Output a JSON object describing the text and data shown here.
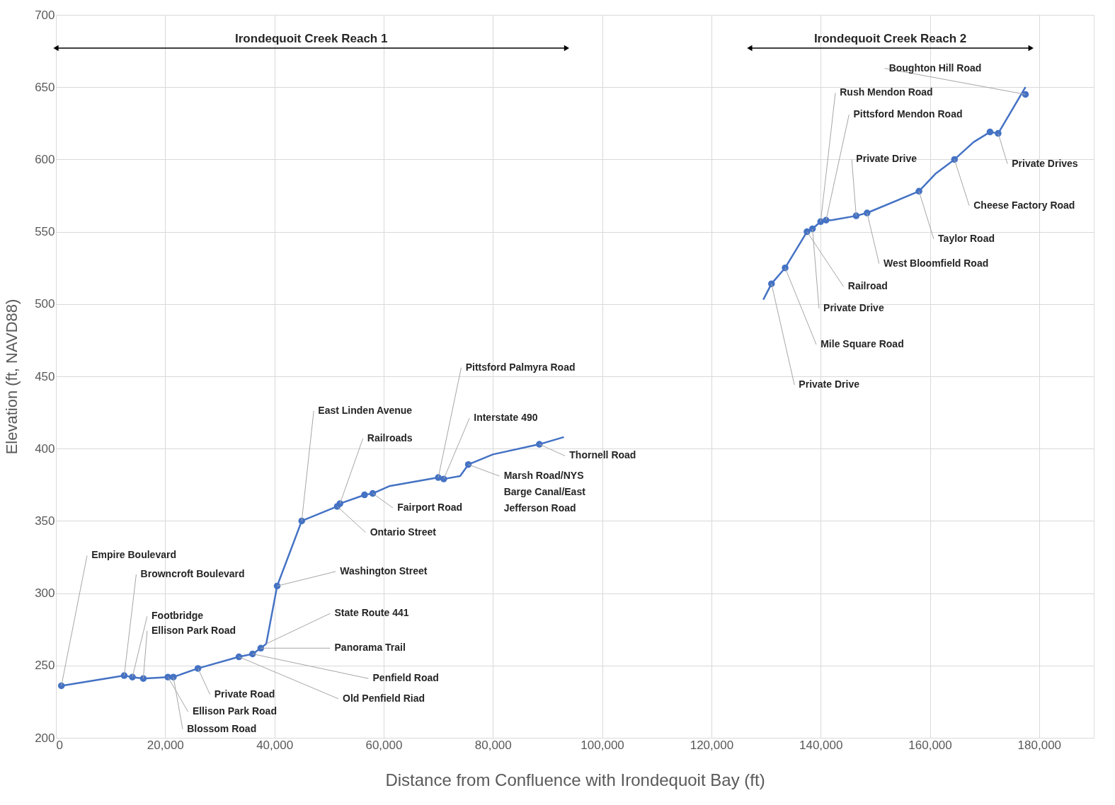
{
  "chart_data": {
    "type": "line",
    "xlabel": "Distance from Confluence with Irondequoit Bay (ft)",
    "ylabel": "Elevation (ft, NAVD88)",
    "xlim": [
      0,
      190000
    ],
    "ylim": [
      200,
      700
    ],
    "xticks": [
      0,
      {
        "value": 20000,
        "label": "20,000"
      },
      {
        "value": 40000,
        "label": "40,000"
      },
      {
        "value": 60000,
        "label": "60,000"
      },
      {
        "value": 80000,
        "label": "80,000"
      },
      {
        "value": 100000,
        "label": "100,000"
      },
      {
        "value": 120000,
        "label": "120,000"
      },
      {
        "value": 140000,
        "label": "140,000"
      },
      {
        "value": 160000,
        "label": "160,000"
      },
      {
        "value": 180000,
        "label": "180,000"
      }
    ],
    "yticks": [
      200,
      250,
      300,
      350,
      400,
      450,
      500,
      550,
      600,
      650,
      700
    ],
    "grid": true,
    "line_style": "solid",
    "series": [
      {
        "type": "line",
        "color": "#4472c4",
        "marker": "none",
        "x": [
          1000,
          12500,
          14000,
          16000,
          20500,
          21500,
          26000,
          33500,
          36000,
          37500,
          38500,
          40500,
          45000,
          51500,
          52000,
          56500,
          58000,
          61000,
          70000,
          71000,
          74000,
          75500,
          80000,
          88500,
          93000
        ],
        "values": [
          236,
          243,
          242,
          241,
          242,
          242,
          248,
          256,
          258,
          262,
          265,
          305,
          350,
          360,
          362,
          368,
          369,
          374,
          380,
          379,
          381,
          389,
          396,
          403,
          408
        ]
      },
      {
        "type": "line",
        "color": "#4472c4",
        "marker": "none",
        "x": [
          129500,
          131000,
          133500,
          137500,
          138500,
          140000,
          141000,
          142000,
          146500,
          148500,
          158000,
          161000,
          164500,
          168000,
          171000,
          172500,
          177500
        ],
        "values": [
          503,
          514,
          525,
          550,
          552,
          557,
          558,
          558,
          561,
          563,
          578,
          590,
          600,
          612,
          619,
          618,
          650
        ]
      },
      {
        "type": "scatter",
        "color": "#4472c4",
        "marker": "circle",
        "x": [
          1000,
          12500,
          14000,
          16000,
          20500,
          21500,
          26000,
          33500,
          36000,
          37500,
          40500,
          45000,
          51500,
          52000,
          56500,
          58000,
          70000,
          71000,
          75500,
          88500,
          131000,
          133500,
          137500,
          138500,
          140000,
          141000,
          146500,
          148500,
          158000,
          164500,
          171000,
          172500,
          177500
        ],
        "values": [
          236,
          243,
          242,
          241,
          242,
          242,
          248,
          256,
          258,
          262,
          305,
          350,
          360,
          362,
          368,
          369,
          380,
          379,
          389,
          403,
          514,
          525,
          550,
          552,
          557,
          558,
          561,
          563,
          578,
          600,
          619,
          618,
          645
        ]
      }
    ],
    "annotations": [
      "Irondequoit Creek Reach 1",
      "Irondequoit Creek Reach 2",
      {
        "text": "Empire Boulevard",
        "x": 1000,
        "y": 236
      },
      {
        "text": "Browncroft Boulevard",
        "x": 12500,
        "y": 243
      },
      {
        "text": "Footbridge",
        "x": 14000,
        "y": 242
      },
      {
        "text": "Ellison Park Road",
        "x": 16000,
        "y": 241
      },
      {
        "text": "Blossom Road",
        "x": 21500,
        "y": 242
      },
      {
        "text": "Ellison Park Road",
        "x": 20500,
        "y": 242
      },
      {
        "text": "Private Road",
        "x": 26000,
        "y": 248
      },
      {
        "text": "Old Penfield Riad",
        "x": 33500,
        "y": 256
      },
      {
        "text": "Penfield Road",
        "x": 36000,
        "y": 258
      },
      {
        "text": "Panorama Trail",
        "x": 37500,
        "y": 262
      },
      {
        "text": "State Route 441",
        "x": 38500,
        "y": 265
      },
      {
        "text": "Washington Street",
        "x": 40500,
        "y": 305
      },
      {
        "text": "East Linden Avenue",
        "x": 45000,
        "y": 350
      },
      {
        "text": "Ontario Street",
        "x": 51500,
        "y": 360
      },
      {
        "text": "Railroads",
        "x": 52000,
        "y": 362
      },
      {
        "text": "Fairport Road",
        "x": 58000,
        "y": 369
      },
      {
        "text": "Pittsford Palmyra Road",
        "x": 70000,
        "y": 380
      },
      {
        "text": "Interstate 490",
        "x": 71000,
        "y": 379
      },
      {
        "text": "Marsh Road/NYS\nBarge Canal/East\nJefferson Road",
        "x": 75500,
        "y": 389
      },
      {
        "text": "Thornell Road",
        "x": 88500,
        "y": 403
      },
      {
        "text": "Private Drive",
        "x": 131000,
        "y": 514
      },
      {
        "text": "Mile Square Road",
        "x": 133500,
        "y": 525
      },
      {
        "text": "Private Drive",
        "x": 138500,
        "y": 552
      },
      {
        "text": "Railroad",
        "x": 137500,
        "y": 550
      },
      {
        "text": "West Bloomfield Road",
        "x": 148500,
        "y": 563
      },
      {
        "text": "Taylor Road",
        "x": 158000,
        "y": 578
      },
      {
        "text": "Cheese Factory Road",
        "x": 164500,
        "y": 600
      },
      {
        "text": "Private Drives",
        "x": 172500,
        "y": 618
      },
      {
        "text": "Boughton Hill Road",
        "x": 177500,
        "y": 645
      },
      {
        "text": "Rush Mendon Road",
        "x": 140000,
        "y": 557
      },
      {
        "text": "Pittsford Mendon Road",
        "x": 141000,
        "y": 558
      },
      {
        "text": "Private Drive",
        "x": 146500,
        "y": 561
      }
    ]
  }
}
